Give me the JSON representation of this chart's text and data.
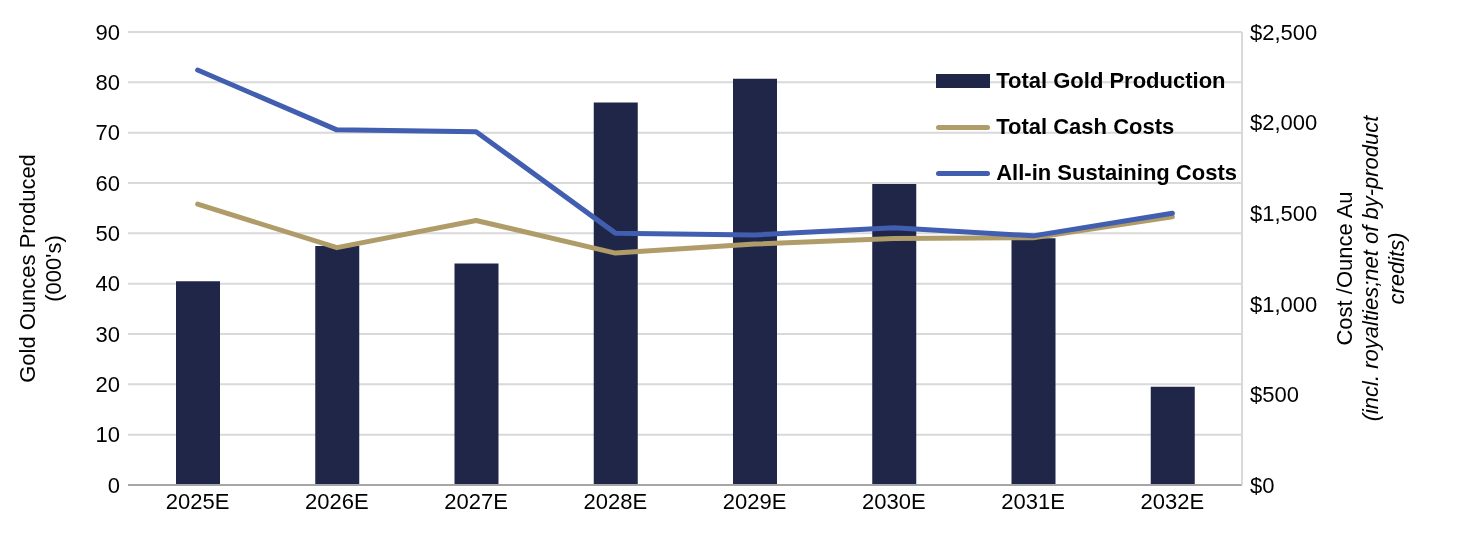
{
  "chart_data": {
    "type": "bar",
    "ylabel": "Gold Ounces Produced\n(000's)",
    "y2label": "Cost /Ounce Au\n(incl. royalties;net of by-product credits)",
    "categories": [
      "2025E",
      "2026E",
      "2027E",
      "2028E",
      "2029E",
      "2030E",
      "2031E",
      "2032E"
    ],
    "series": [
      {
        "name": "Total Gold Production",
        "color": "#1f2647",
        "values": [
          40.5,
          47.5,
          44,
          76,
          80.7,
          59.8,
          49,
          19.5
        ]
      },
      {
        "name": "Total Cash Costs",
        "type": "line",
        "axis": "y2",
        "color": "#b09c68",
        "values": [
          1550,
          1310,
          1460,
          1280,
          1330,
          1360,
          1365,
          1480
        ]
      },
      {
        "name": "All-in Sustaining Costs",
        "type": "line",
        "axis": "y2",
        "color": "#415eb0",
        "values": [
          2290,
          1960,
          1950,
          1390,
          1380,
          1420,
          1375,
          1500
        ]
      }
    ],
    "ylim": [
      0,
      90
    ],
    "yticks": [
      0,
      10,
      20,
      30,
      40,
      50,
      60,
      70,
      80,
      90
    ],
    "y2lim": [
      0,
      2500
    ],
    "y2ticks": [
      {
        "value": 0,
        "label": "$0"
      },
      {
        "value": 500,
        "label": "$500"
      },
      {
        "value": 1000,
        "label": "$1,000"
      },
      {
        "value": 1500,
        "label": "$1,500"
      },
      {
        "value": 2000,
        "label": "$2,000"
      },
      {
        "value": 2500,
        "label": "$2,500"
      }
    ],
    "grid": "y",
    "legend": "top right",
    "marker": "none",
    "line_style": "solid"
  }
}
